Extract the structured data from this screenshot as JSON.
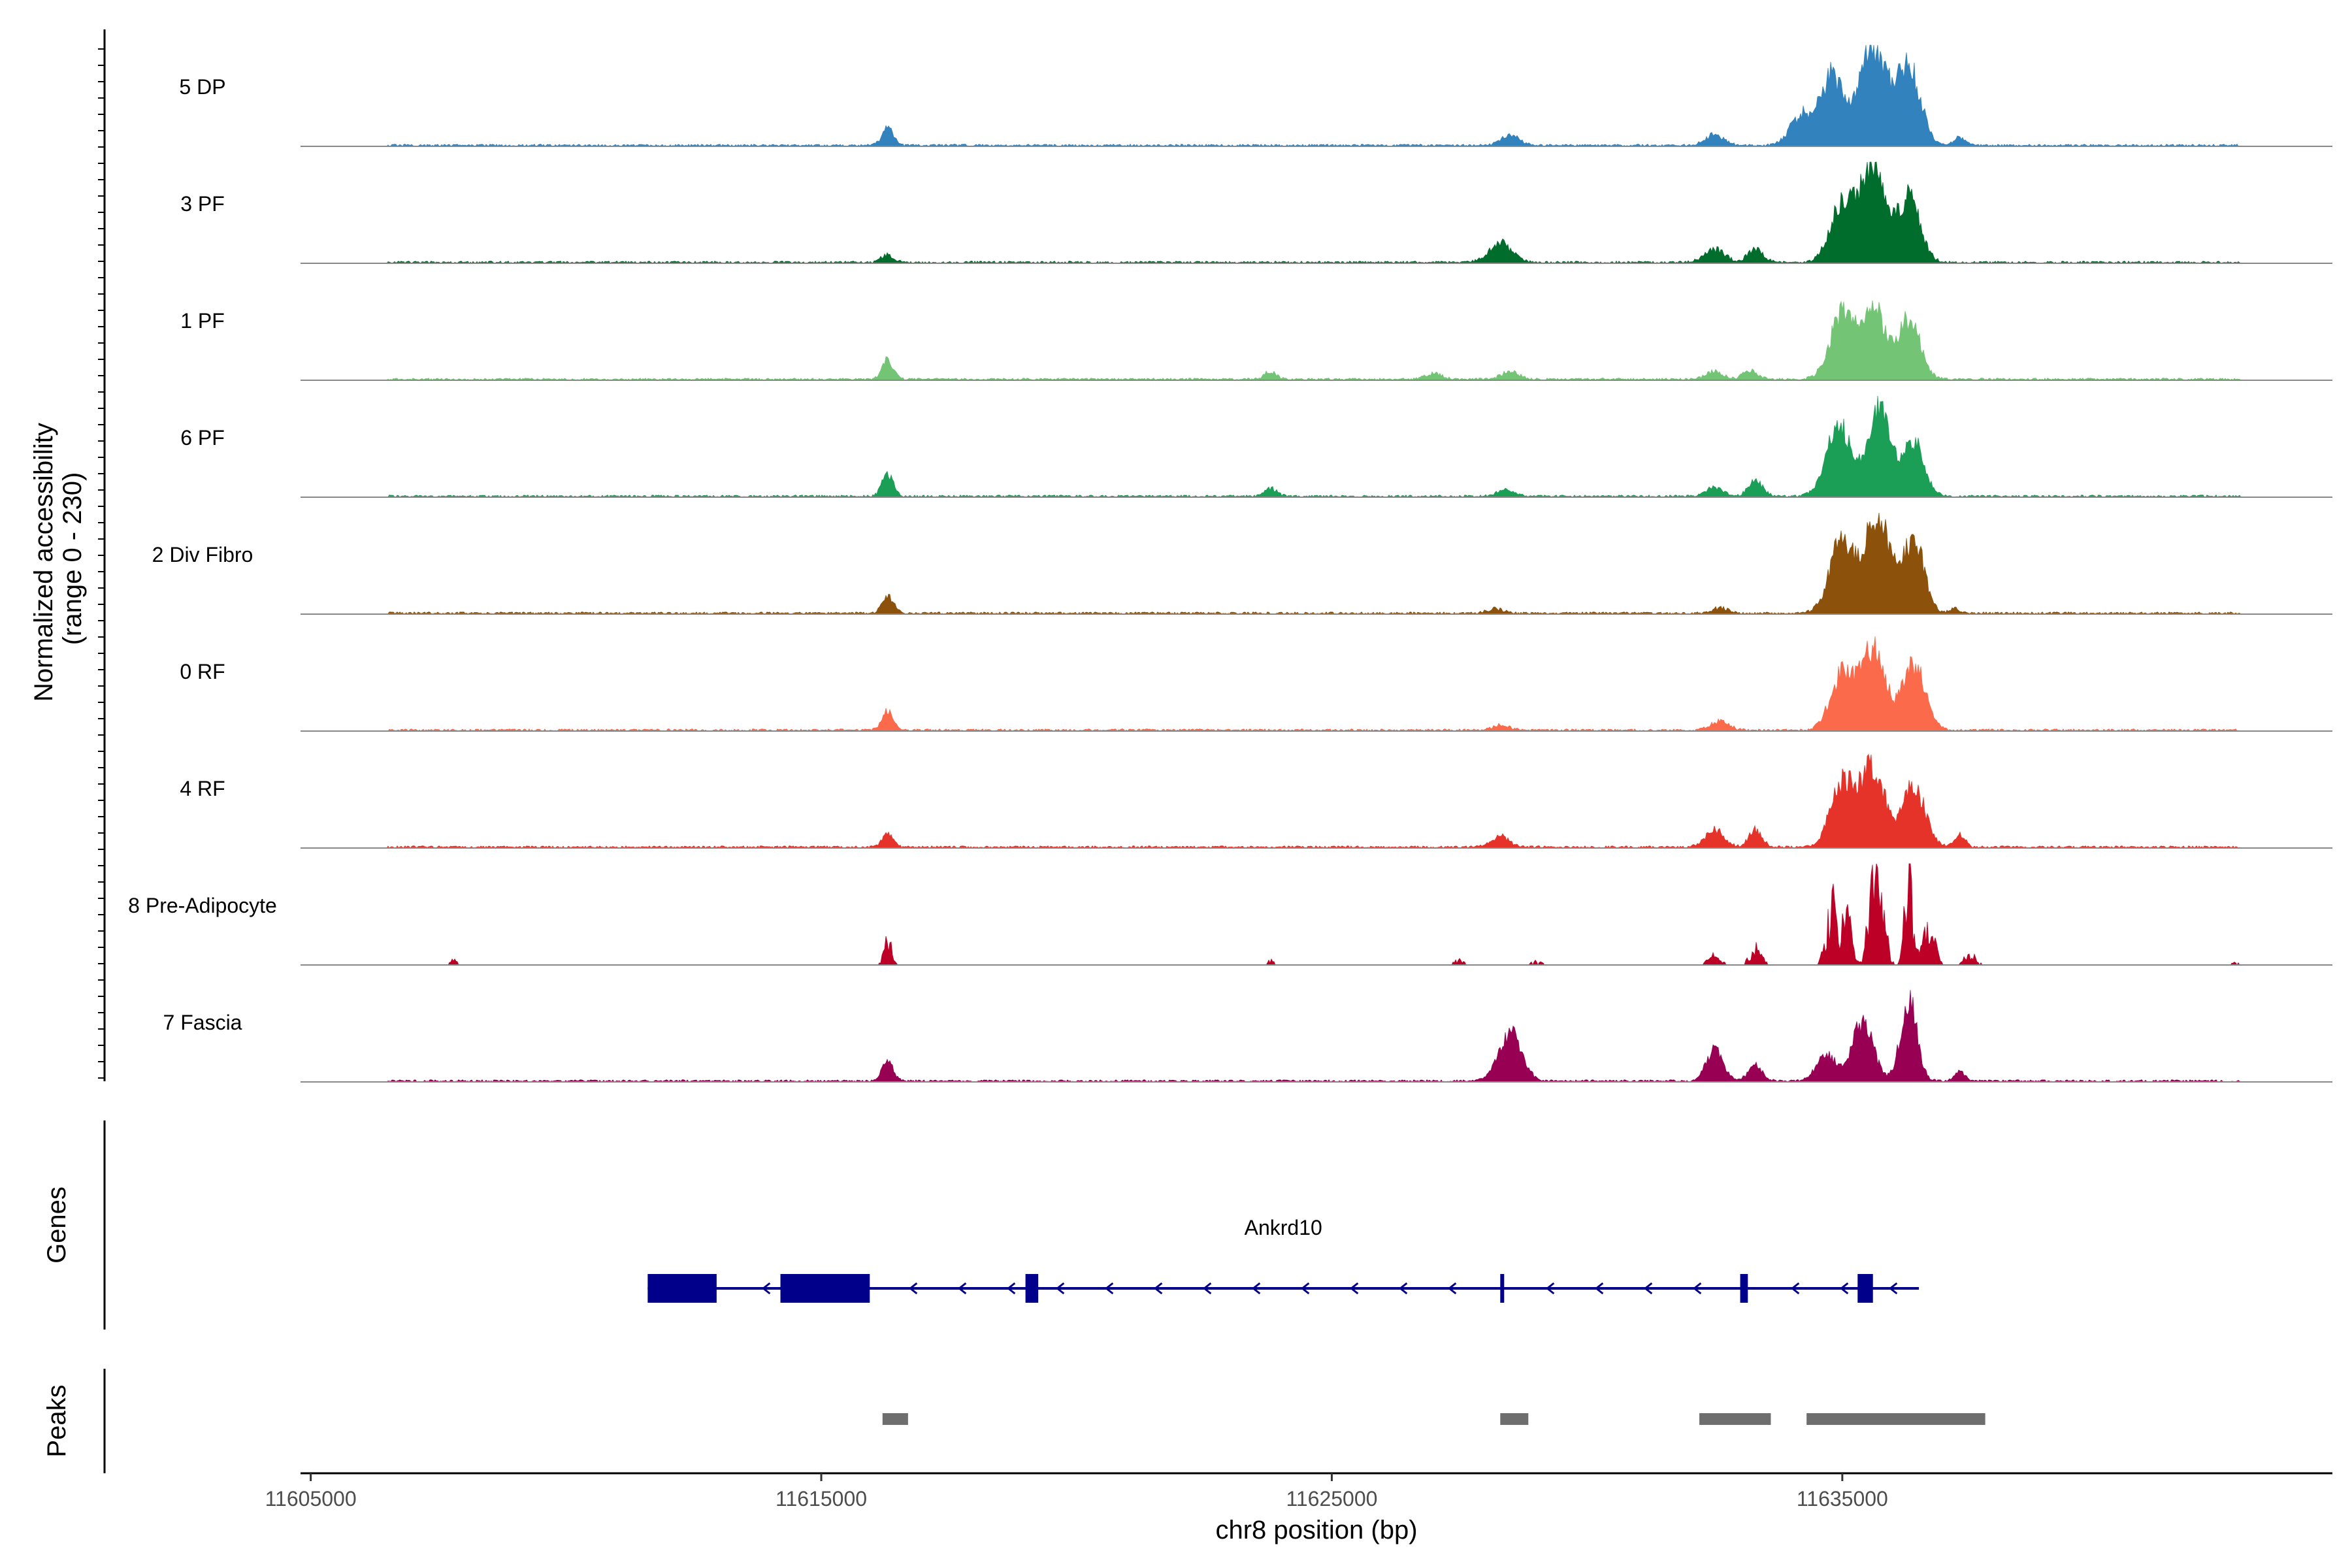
{
  "chart_data": {
    "type": "area",
    "title": "",
    "ylabel": "Normalized accessibility\n(range 0 - 230)",
    "ylabel_lines": [
      "Normalized accessibility",
      "(range 0 - 230)"
    ],
    "xlabel": "chr8 position (bp)",
    "chromosome": "chr8",
    "xlim": [
      11604800,
      11644600
    ],
    "ylim": [
      0,
      230
    ],
    "x_ticks": [
      11605000,
      11615000,
      11625000,
      11635000
    ],
    "x_tick_labels": [
      "11605000",
      "11615000",
      "11625000",
      "11635000"
    ],
    "panel_labels": {
      "genes": "Genes",
      "peaks": "Peaks"
    },
    "series": [
      {
        "name": "5 DP",
        "color": "#3182bd",
        "peaks": [
          [
            11616300,
            40,
            110
          ],
          [
            11628500,
            25,
            170
          ],
          [
            11632500,
            25,
            180
          ],
          [
            11634200,
            70,
            220
          ],
          [
            11634800,
            160,
            230
          ],
          [
            11635600,
            230,
            260
          ],
          [
            11636300,
            180,
            230
          ],
          [
            11637300,
            18,
            110
          ]
        ]
      },
      {
        "name": "3 PF",
        "color": "#006d2c",
        "peaks": [
          [
            11616300,
            18,
            120
          ],
          [
            11628300,
            45,
            220
          ],
          [
            11632500,
            30,
            200
          ],
          [
            11633300,
            30,
            150
          ],
          [
            11635000,
            140,
            230
          ],
          [
            11635600,
            230,
            230
          ],
          [
            11636300,
            150,
            220
          ]
        ]
      },
      {
        "name": "1 PF",
        "color": "#74c476",
        "peaks": [
          [
            11616300,
            45,
            110
          ],
          [
            11623800,
            18,
            120
          ],
          [
            11627000,
            14,
            160
          ],
          [
            11628500,
            18,
            170
          ],
          [
            11632500,
            18,
            170
          ],
          [
            11633200,
            20,
            140
          ],
          [
            11635000,
            150,
            240
          ],
          [
            11635600,
            170,
            220
          ],
          [
            11636300,
            140,
            220
          ]
        ]
      },
      {
        "name": "6 PF",
        "color": "#1b9e56",
        "peaks": [
          [
            11616300,
            50,
            110
          ],
          [
            11623800,
            18,
            120
          ],
          [
            11628400,
            14,
            170
          ],
          [
            11632500,
            20,
            170
          ],
          [
            11633300,
            35,
            140
          ],
          [
            11634800,
            80,
            220
          ],
          [
            11635000,
            110,
            180
          ],
          [
            11635700,
            200,
            240
          ],
          [
            11636400,
            130,
            200
          ]
        ]
      },
      {
        "name": "2 Div Fibro",
        "color": "#8c510a",
        "peaks": [
          [
            11616300,
            40,
            110
          ],
          [
            11628200,
            10,
            160
          ],
          [
            11632600,
            12,
            160
          ],
          [
            11635000,
            170,
            240
          ],
          [
            11635700,
            230,
            240
          ],
          [
            11636400,
            170,
            200
          ],
          [
            11637200,
            10,
            100
          ]
        ]
      },
      {
        "name": "0 RF",
        "color": "#fb6a4a",
        "peaks": [
          [
            11616300,
            45,
            110
          ],
          [
            11628300,
            12,
            160
          ],
          [
            11632600,
            20,
            180
          ],
          [
            11635000,
            130,
            230
          ],
          [
            11635600,
            190,
            240
          ],
          [
            11636400,
            150,
            220
          ]
        ]
      },
      {
        "name": "4 RF",
        "color": "#e6332a",
        "peaks": [
          [
            11616300,
            30,
            110
          ],
          [
            11628300,
            25,
            170
          ],
          [
            11632500,
            40,
            180
          ],
          [
            11633300,
            40,
            130
          ],
          [
            11635000,
            150,
            230
          ],
          [
            11635600,
            180,
            240
          ],
          [
            11636400,
            140,
            220
          ],
          [
            11637300,
            30,
            100
          ]
        ]
      },
      {
        "name": "8 Pre-Adipocyte",
        "color": "#bd0026",
        "peaks": [
          [
            11607800,
            15,
            60
          ],
          [
            11616300,
            70,
            70
          ],
          [
            11623800,
            12,
            60
          ],
          [
            11627500,
            12,
            110
          ],
          [
            11629000,
            10,
            100
          ],
          [
            11632500,
            30,
            110
          ],
          [
            11633300,
            45,
            110
          ],
          [
            11634800,
            150,
            110
          ],
          [
            11635100,
            120,
            90
          ],
          [
            11635600,
            230,
            90
          ],
          [
            11635800,
            140,
            80
          ],
          [
            11636300,
            230,
            80
          ],
          [
            11636700,
            100,
            110
          ],
          [
            11637500,
            30,
            110
          ],
          [
            11642700,
            10,
            60
          ]
        ]
      },
      {
        "name": "7 Fascia",
        "color": "#980054",
        "peaks": [
          [
            11616300,
            45,
            110
          ],
          [
            11628500,
            110,
            220
          ],
          [
            11632500,
            75,
            160
          ],
          [
            11633300,
            35,
            140
          ],
          [
            11634700,
            60,
            200
          ],
          [
            11635400,
            140,
            200
          ],
          [
            11636300,
            190,
            160
          ],
          [
            11637300,
            20,
            100
          ]
        ]
      }
    ],
    "genes": [
      {
        "name": "Ankrd10",
        "start": 11611600,
        "end": 11636500,
        "strand": "-",
        "exons": [
          [
            11611600,
            11612950
          ],
          [
            11614200,
            11615950
          ],
          [
            11619000,
            11619250
          ],
          [
            11628300,
            11628360
          ],
          [
            11633000,
            11633150
          ],
          [
            11635300,
            11635600
          ]
        ]
      }
    ],
    "peak_regions": [
      [
        11616200,
        11616700
      ],
      [
        11628300,
        11628850
      ],
      [
        11632200,
        11633600
      ],
      [
        11634300,
        11637800
      ]
    ]
  }
}
